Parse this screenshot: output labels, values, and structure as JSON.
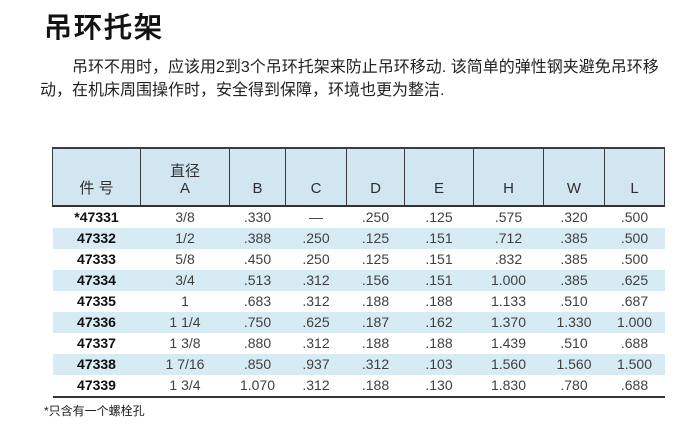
{
  "page": {
    "title": "吊环托架",
    "intro": "吊环不用时，应该用2到3个吊环托架来防止吊环移动. 该简单的弹性钢夹避免吊环移动，在机床周围操作时，安全得到保障，环境也更为整洁.",
    "footnote": "*只含有一个螺栓孔"
  },
  "colors": {
    "header_bg": "#d2e6f1",
    "stripe_bg": "#d7ebf5",
    "border_dark": "#3c3c3c"
  },
  "table": {
    "headers": [
      "件 号",
      "直径\nA",
      "B",
      "C",
      "D",
      "E",
      "H",
      "W",
      "L"
    ],
    "rows": [
      {
        "part": "*47331",
        "values": [
          "3/8",
          ".330",
          "—",
          ".250",
          ".125",
          ".575",
          ".320",
          ".500"
        ]
      },
      {
        "part": "47332",
        "values": [
          "1/2",
          ".388",
          ".250",
          ".125",
          ".151",
          ".712",
          ".385",
          ".500"
        ]
      },
      {
        "part": "47333",
        "values": [
          "5/8",
          ".450",
          ".250",
          ".125",
          ".151",
          ".832",
          ".385",
          ".500"
        ]
      },
      {
        "part": "47334",
        "values": [
          "3/4",
          ".513",
          ".312",
          ".156",
          ".151",
          "1.000",
          ".385",
          ".625"
        ]
      },
      {
        "part": "47335",
        "values": [
          "1",
          ".683",
          ".312",
          ".188",
          ".188",
          "1.133",
          ".510",
          ".687"
        ]
      },
      {
        "part": "47336",
        "values": [
          "1 1/4",
          ".750",
          ".625",
          ".187",
          ".162",
          "1.370",
          "1.330",
          "1.000"
        ]
      },
      {
        "part": "47337",
        "values": [
          "1 3/8",
          ".880",
          ".312",
          ".188",
          ".188",
          "1.439",
          ".510",
          ".688"
        ]
      },
      {
        "part": "47338",
        "values": [
          "1 7/16",
          ".850",
          ".937",
          ".312",
          ".103",
          "1.560",
          "1.560",
          "1.500"
        ]
      },
      {
        "part": "47339",
        "values": [
          "1 3/4",
          "1.070",
          ".312",
          ".188",
          ".130",
          "1.830",
          ".780",
          ".688"
        ]
      }
    ]
  }
}
